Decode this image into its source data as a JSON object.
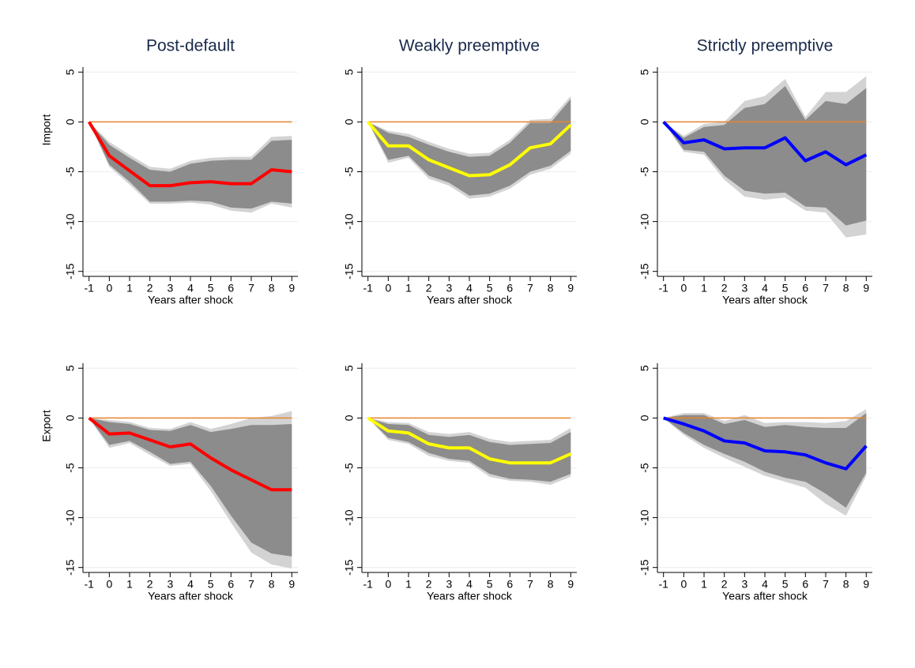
{
  "chart_data": [
    {
      "type": "line",
      "title": "Post-default",
      "ylabel": "Import",
      "xlabel": "Years after shock",
      "x": [
        -1,
        0,
        1,
        2,
        3,
        4,
        5,
        6,
        7,
        8,
        9
      ],
      "xlim": [
        -1.3,
        9.3
      ],
      "xticks": [
        -1,
        0,
        1,
        2,
        3,
        4,
        5,
        6,
        7,
        8,
        9
      ],
      "ylim": [
        -15.5,
        5.5
      ],
      "yticks": [
        5,
        0,
        -5,
        -10,
        -15
      ],
      "grid": true,
      "hline": {
        "value": 0,
        "color": "#e8852c"
      },
      "bands": [
        {
          "color": "#d3d3d3",
          "lower": [
            0,
            -4.5,
            -6.3,
            -8.2,
            -8.2,
            -8.1,
            -8.3,
            -8.9,
            -9.1,
            -8.2,
            -8.6
          ],
          "upper": [
            0,
            -2.0,
            -3.3,
            -4.5,
            -4.7,
            -3.9,
            -3.6,
            -3.5,
            -3.5,
            -1.5,
            -1.4
          ]
        },
        {
          "color": "#8c8c8c",
          "lower": [
            0,
            -4.3,
            -6.0,
            -8.0,
            -8.0,
            -7.9,
            -8.0,
            -8.6,
            -8.7,
            -8.0,
            -8.2
          ],
          "upper": [
            0,
            -2.3,
            -3.6,
            -4.8,
            -5.0,
            -4.2,
            -3.9,
            -3.8,
            -3.8,
            -1.9,
            -1.8
          ]
        }
      ],
      "series": [
        {
          "color": "#ff0000",
          "values": [
            0,
            -3.4,
            -4.9,
            -6.4,
            -6.4,
            -6.1,
            -6.0,
            -6.2,
            -6.2,
            -4.8,
            -5.0
          ]
        }
      ]
    },
    {
      "type": "line",
      "title": "Weakly preemptive",
      "xlabel": "Years after shock",
      "x": [
        -1,
        0,
        1,
        2,
        3,
        4,
        5,
        6,
        7,
        8,
        9
      ],
      "xlim": [
        -1.3,
        9.3
      ],
      "xticks": [
        -1,
        0,
        1,
        2,
        3,
        4,
        5,
        6,
        7,
        8,
        9
      ],
      "ylim": [
        -15.5,
        5.5
      ],
      "yticks": [
        5,
        0,
        -5,
        -10,
        -15
      ],
      "grid": true,
      "hline": {
        "value": 0,
        "color": "#e8852c"
      },
      "bands": [
        {
          "color": "#d3d3d3",
          "lower": [
            0,
            -4.1,
            -3.6,
            -5.7,
            -6.4,
            -7.7,
            -7.5,
            -6.7,
            -5.3,
            -4.7,
            -3.2
          ],
          "upper": [
            0,
            -0.9,
            -1.2,
            -2.0,
            -2.7,
            -3.2,
            -3.1,
            -1.8,
            0.2,
            0.3,
            2.6
          ]
        },
        {
          "color": "#8c8c8c",
          "lower": [
            0,
            -3.8,
            -3.4,
            -5.4,
            -6.1,
            -7.4,
            -7.2,
            -6.4,
            -5.0,
            -4.4,
            -2.9
          ],
          "upper": [
            0,
            -1.1,
            -1.5,
            -2.3,
            -3.0,
            -3.5,
            -3.4,
            -2.1,
            -0.1,
            -0.1,
            2.3
          ]
        }
      ],
      "series": [
        {
          "color": "#ffff00",
          "values": [
            0,
            -2.4,
            -2.4,
            -3.8,
            -4.6,
            -5.4,
            -5.3,
            -4.3,
            -2.6,
            -2.2,
            -0.3
          ]
        }
      ]
    },
    {
      "type": "line",
      "title": "Strictly preemptive",
      "xlabel": "Years after shock",
      "x": [
        -1,
        0,
        1,
        2,
        3,
        4,
        5,
        6,
        7,
        8,
        9
      ],
      "xlim": [
        -1.3,
        9.3
      ],
      "xticks": [
        -1,
        0,
        1,
        2,
        3,
        4,
        5,
        6,
        7,
        8,
        9
      ],
      "ylim": [
        -15.5,
        5.5
      ],
      "yticks": [
        5,
        0,
        -5,
        -10,
        -15
      ],
      "grid": true,
      "hline": {
        "value": 0,
        "color": "#e8852c"
      },
      "bands": [
        {
          "color": "#d3d3d3",
          "lower": [
            0,
            -3.0,
            -3.3,
            -5.8,
            -7.5,
            -7.8,
            -7.6,
            -8.9,
            -9.1,
            -11.6,
            -11.3
          ],
          "upper": [
            0,
            -1.4,
            -0.2,
            0,
            2.1,
            2.6,
            4.3,
            0.5,
            3.0,
            3.0,
            4.6
          ]
        },
        {
          "color": "#8c8c8c",
          "lower": [
            0,
            -2.8,
            -3.0,
            -5.4,
            -6.9,
            -7.2,
            -7.1,
            -8.5,
            -8.6,
            -10.4,
            -9.9
          ],
          "upper": [
            0,
            -1.6,
            -0.5,
            -0.3,
            1.4,
            1.8,
            3.6,
            0.2,
            2.1,
            1.8,
            3.4
          ]
        }
      ],
      "series": [
        {
          "color": "#0000ff",
          "values": [
            0,
            -2.1,
            -1.8,
            -2.7,
            -2.6,
            -2.6,
            -1.6,
            -3.9,
            -3.0,
            -4.3,
            -3.3
          ]
        }
      ]
    },
    {
      "type": "line",
      "ylabel": "Export",
      "xlabel": "Years after shock",
      "x": [
        -1,
        0,
        1,
        2,
        3,
        4,
        5,
        6,
        7,
        8,
        9
      ],
      "xlim": [
        -1.3,
        9.3
      ],
      "xticks": [
        -1,
        0,
        1,
        2,
        3,
        4,
        5,
        6,
        7,
        8,
        9
      ],
      "ylim": [
        -15.5,
        5.5
      ],
      "yticks": [
        5,
        0,
        -5,
        -10,
        -15
      ],
      "grid": true,
      "hline": {
        "value": 0,
        "color": "#e8852c"
      },
      "bands": [
        {
          "color": "#d3d3d3",
          "lower": [
            0,
            -3.0,
            -2.5,
            -3.7,
            -4.8,
            -4.6,
            -7.3,
            -10.5,
            -13.5,
            -14.7,
            -15.1
          ],
          "upper": [
            0,
            -0.2,
            -0.4,
            -1.0,
            -1.1,
            -0.4,
            -1.1,
            -0.6,
            0,
            0.2,
            0.7
          ]
        },
        {
          "color": "#8c8c8c",
          "lower": [
            0,
            -2.7,
            -2.3,
            -3.4,
            -4.6,
            -4.4,
            -6.8,
            -9.8,
            -12.5,
            -13.6,
            -13.9
          ],
          "upper": [
            0,
            -0.4,
            -0.6,
            -1.2,
            -1.3,
            -0.7,
            -1.4,
            -1.1,
            -0.7,
            -0.7,
            -0.6
          ]
        }
      ],
      "series": [
        {
          "color": "#ff0000",
          "values": [
            0,
            -1.6,
            -1.5,
            -2.2,
            -2.9,
            -2.6,
            -4.0,
            -5.2,
            -6.2,
            -7.2,
            -7.2
          ]
        }
      ]
    },
    {
      "type": "line",
      "xlabel": "Years after shock",
      "x": [
        -1,
        0,
        1,
        2,
        3,
        4,
        5,
        6,
        7,
        8,
        9
      ],
      "xlim": [
        -1.3,
        9.3
      ],
      "xticks": [
        -1,
        0,
        1,
        2,
        3,
        4,
        5,
        6,
        7,
        8,
        9
      ],
      "ylim": [
        -15.5,
        5.5
      ],
      "yticks": [
        5,
        0,
        -5,
        -10,
        -15
      ],
      "grid": true,
      "hline": {
        "value": 0,
        "color": "#e8852c"
      },
      "bands": [
        {
          "color": "#d3d3d3",
          "lower": [
            0,
            -2.2,
            -2.6,
            -3.8,
            -4.3,
            -4.5,
            -5.9,
            -6.3,
            -6.4,
            -6.7,
            -5.9
          ],
          "upper": [
            0,
            -0.4,
            -0.5,
            -1.4,
            -1.6,
            -1.4,
            -2.1,
            -2.4,
            -2.3,
            -2.2,
            -1.0
          ]
        },
        {
          "color": "#8c8c8c",
          "lower": [
            0,
            -2.0,
            -2.4,
            -3.5,
            -4.1,
            -4.3,
            -5.6,
            -6.1,
            -6.2,
            -6.4,
            -5.6
          ],
          "upper": [
            0,
            -0.6,
            -0.7,
            -1.7,
            -1.9,
            -1.7,
            -2.4,
            -2.7,
            -2.6,
            -2.5,
            -1.4
          ]
        }
      ],
      "series": [
        {
          "color": "#ffff00",
          "values": [
            0,
            -1.3,
            -1.5,
            -2.6,
            -3.0,
            -3.0,
            -4.1,
            -4.5,
            -4.5,
            -4.5,
            -3.6
          ]
        }
      ]
    },
    {
      "type": "line",
      "xlabel": "Years after shock",
      "x": [
        -1,
        0,
        1,
        2,
        3,
        4,
        5,
        6,
        7,
        8,
        9
      ],
      "xlim": [
        -1.3,
        9.3
      ],
      "xticks": [
        -1,
        0,
        1,
        2,
        3,
        4,
        5,
        6,
        7,
        8,
        9
      ],
      "ylim": [
        -15.5,
        5.5
      ],
      "yticks": [
        5,
        0,
        -5,
        -10,
        -15
      ],
      "grid": true,
      "hline": {
        "value": 0,
        "color": "#e8852c"
      },
      "bands": [
        {
          "color": "#d3d3d3",
          "lower": [
            0,
            -1.7,
            -3.0,
            -4.0,
            -4.9,
            -5.8,
            -6.4,
            -7.0,
            -8.6,
            -9.8,
            -5.8
          ],
          "upper": [
            0,
            0.5,
            0.5,
            -0.3,
            0.3,
            -0.5,
            -0.4,
            -0.4,
            -0.5,
            -0.3,
            0.9
          ]
        },
        {
          "color": "#8c8c8c",
          "lower": [
            0,
            -1.5,
            -2.7,
            -3.6,
            -4.4,
            -5.4,
            -6.0,
            -6.4,
            -7.6,
            -9.0,
            -5.5
          ],
          "upper": [
            0,
            0.3,
            0.3,
            -0.6,
            -0.2,
            -0.9,
            -0.7,
            -0.9,
            -1.0,
            -1.0,
            0.5
          ]
        }
      ],
      "series": [
        {
          "color": "#0000ff",
          "values": [
            0,
            -0.6,
            -1.3,
            -2.3,
            -2.5,
            -3.3,
            -3.4,
            -3.7,
            -4.5,
            -5.1,
            -2.8
          ]
        }
      ]
    }
  ]
}
